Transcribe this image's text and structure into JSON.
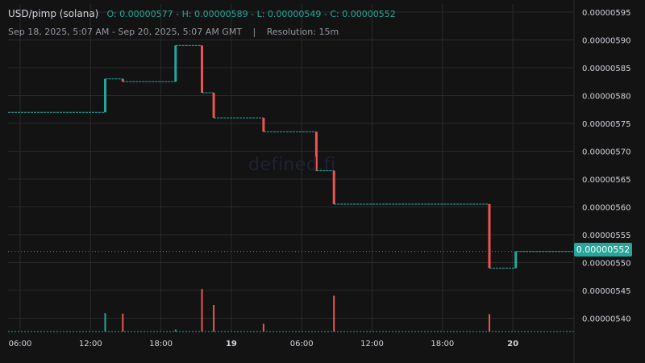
{
  "header": {
    "pair": "USD/pimp (solana)",
    "open_label": "O:",
    "open": "0.00000577",
    "high_label": "H:",
    "high": "0.00000589",
    "low_label": "L:",
    "low": "0.00000549",
    "close_label": "C:",
    "close": "0.00000552",
    "range": "Sep 18, 2025, 5:07 AM - Sep 20, 2025, 5:07 AM GMT",
    "separator": "|",
    "resolution": "Resolution: 15m"
  },
  "watermark": "defined.fi",
  "last_price_label": "0.00000552",
  "colors": {
    "up": "#26a69a",
    "down": "#ef5350",
    "grid": "#2a2a2a",
    "background": "#131313"
  },
  "chart_data": {
    "type": "candlestick",
    "y_ticks": [
      "0.00000595",
      "0.00000590",
      "0.00000585",
      "0.00000580",
      "0.00000575",
      "0.00000570",
      "0.00000565",
      "0.00000560",
      "0.00000555",
      "0.00000550",
      "0.00000545",
      "0.00000540"
    ],
    "x_ticks": [
      {
        "label": "06:00",
        "hours": 6
      },
      {
        "label": "12:00",
        "hours": 12
      },
      {
        "label": "18:00",
        "hours": 18
      },
      {
        "label": "19",
        "hours": 24
      },
      {
        "label": "06:00",
        "hours": 30
      },
      {
        "label": "12:00",
        "hours": 36
      },
      {
        "label": "18:00",
        "hours": 42
      },
      {
        "label": "20",
        "hours": 48
      }
    ],
    "x_axis_start": "Sep 18, 2025 05:07",
    "ylim": [
      5.374e-06,
      5.968e-06
    ],
    "candles": [
      {
        "t_hours": 13.25,
        "open": 5.77e-06,
        "close": 5.83e-06
      },
      {
        "t_hours": 14.75,
        "open": 5.83e-06,
        "close": 5.825e-06
      },
      {
        "t_hours": 19.25,
        "open": 5.825e-06,
        "close": 5.89e-06
      },
      {
        "t_hours": 21.5,
        "open": 5.89e-06,
        "close": 5.805e-06
      },
      {
        "t_hours": 22.5,
        "open": 5.805e-06,
        "close": 5.76e-06
      },
      {
        "t_hours": 26.75,
        "open": 5.76e-06,
        "close": 5.735e-06
      },
      {
        "t_hours": 31.25,
        "open": 5.735e-06,
        "close": 5.665e-06
      },
      {
        "t_hours": 32.75,
        "open": 5.665e-06,
        "close": 5.605e-06
      },
      {
        "t_hours": 46.0,
        "open": 5.605e-06,
        "close": 5.49e-06
      },
      {
        "t_hours": 48.25,
        "open": 5.49e-06,
        "close": 5.52e-06
      }
    ],
    "volume": [
      {
        "t_hours": 13.25,
        "rel": 0.38,
        "dir": "up"
      },
      {
        "t_hours": 14.75,
        "rel": 0.37,
        "dir": "down"
      },
      {
        "t_hours": 19.25,
        "rel": 0.04,
        "dir": "up"
      },
      {
        "t_hours": 21.5,
        "rel": 0.88,
        "dir": "down"
      },
      {
        "t_hours": 22.5,
        "rel": 0.55,
        "dir": "down"
      },
      {
        "t_hours": 26.75,
        "rel": 0.16,
        "dir": "down"
      },
      {
        "t_hours": 32.75,
        "rel": 0.74,
        "dir": "down"
      },
      {
        "t_hours": 46.0,
        "rel": 0.36,
        "dir": "down"
      }
    ],
    "last_price": 5.52e-06,
    "grid": true
  }
}
